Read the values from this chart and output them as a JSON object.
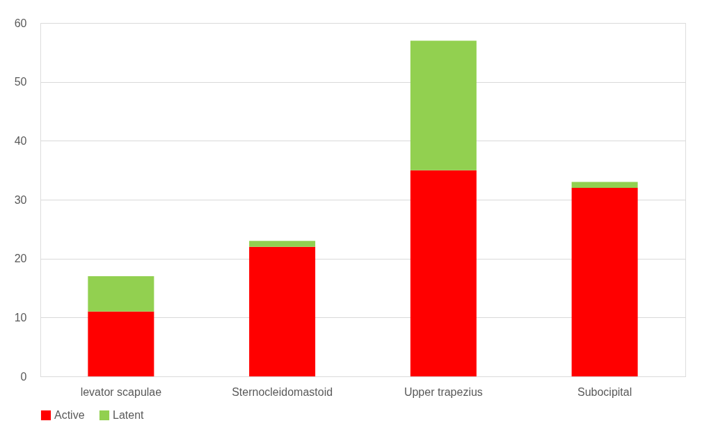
{
  "chart_data": {
    "type": "bar",
    "stacked": true,
    "categories": [
      "levator scapulae",
      "Sternocleidomastoid",
      "Upper trapezius",
      "Subocipital"
    ],
    "series": [
      {
        "name": "Active",
        "color": "#ff0000",
        "values": [
          11,
          22,
          35,
          32
        ]
      },
      {
        "name": "Latent",
        "color": "#92d050",
        "values": [
          6,
          1,
          22,
          1
        ]
      }
    ],
    "ylim": [
      0,
      60
    ],
    "yticks": [
      0,
      10,
      20,
      30,
      40,
      50,
      60
    ],
    "grid": "y",
    "legend": "bottom"
  }
}
